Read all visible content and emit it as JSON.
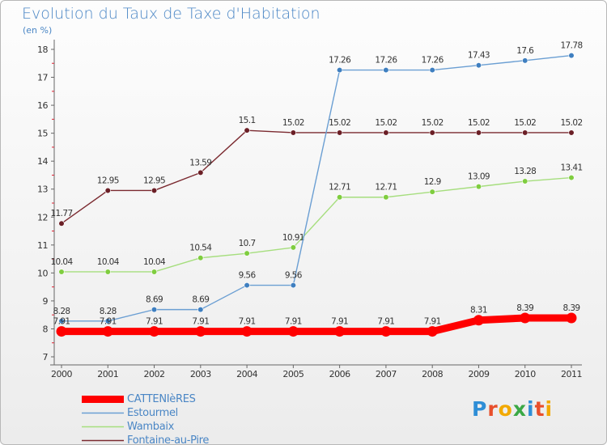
{
  "header": {
    "title": "Evolution du Taux de Taxe d'Habitation",
    "subtitle": "(en %)"
  },
  "logo": {
    "text": "Proxiti",
    "letter_colors": [
      "#2f8ed6",
      "#e84f2c",
      "#f2a900",
      "#3aa845",
      "#2f8ed6",
      "#e84f2c",
      "#f2a900"
    ]
  },
  "chart_data": {
    "type": "line",
    "title": "Evolution du Taux de Taxe d'Habitation",
    "subtitle": "(en %)",
    "xlabel": "",
    "ylabel": "",
    "x": [
      "2000",
      "2001",
      "2002",
      "2003",
      "2004",
      "2005",
      "2006",
      "2007",
      "2008",
      "2009",
      "2010",
      "2011"
    ],
    "ylim": [
      7,
      18
    ],
    "yticks": [
      7,
      8,
      9,
      10,
      11,
      12,
      13,
      14,
      15,
      16,
      17,
      18
    ],
    "grid": false,
    "legend_position": "bottom-left",
    "series": [
      {
        "name": "CATTENIèRES",
        "color": "#ff0000",
        "emphasis": true,
        "values": [
          7.91,
          7.91,
          7.91,
          7.91,
          7.91,
          7.91,
          7.91,
          7.91,
          7.91,
          8.31,
          8.39,
          8.39
        ],
        "labels": [
          "7.91",
          "7.91",
          "7.91",
          "7.91",
          "7.91",
          "7.91",
          "7.91",
          "7.91",
          "7.91",
          "8.31",
          "8.39",
          "8.39"
        ]
      },
      {
        "name": "Estourmel",
        "color": "#6b9fd3",
        "marker": "#3f7fc0",
        "values": [
          8.28,
          8.28,
          8.69,
          8.69,
          9.56,
          9.56,
          17.26,
          17.26,
          17.26,
          17.43,
          17.6,
          17.78
        ],
        "labels": [
          "8.28",
          "8.28",
          "8.69",
          "8.69",
          "9.56",
          "9.56",
          "17.26",
          "17.26",
          "17.26",
          "17.43",
          "17.6",
          "17.78"
        ]
      },
      {
        "name": "Wambaix",
        "color": "#a6de7e",
        "marker": "#7fcd3f",
        "values": [
          10.04,
          10.04,
          10.04,
          10.54,
          10.7,
          10.91,
          12.71,
          12.71,
          12.9,
          13.09,
          13.28,
          13.41
        ],
        "labels": [
          "10.04",
          "10.04",
          "10.04",
          "10.54",
          "10.7",
          "10.91",
          "12.71",
          "12.71",
          "12.9",
          "13.09",
          "13.28",
          "13.41"
        ]
      },
      {
        "name": "Fontaine-au-Pire",
        "color": "#7b2a30",
        "marker": "#6b1f26",
        "values": [
          11.77,
          12.95,
          12.95,
          13.59,
          15.1,
          15.02,
          15.02,
          15.02,
          15.02,
          15.02,
          15.02,
          15.02
        ],
        "labels": [
          "11.77",
          "12.95",
          "12.95",
          "13.59",
          "15.1",
          "15.02",
          "15.02",
          "15.02",
          "15.02",
          "15.02",
          "15.02",
          "15.02"
        ]
      }
    ]
  }
}
